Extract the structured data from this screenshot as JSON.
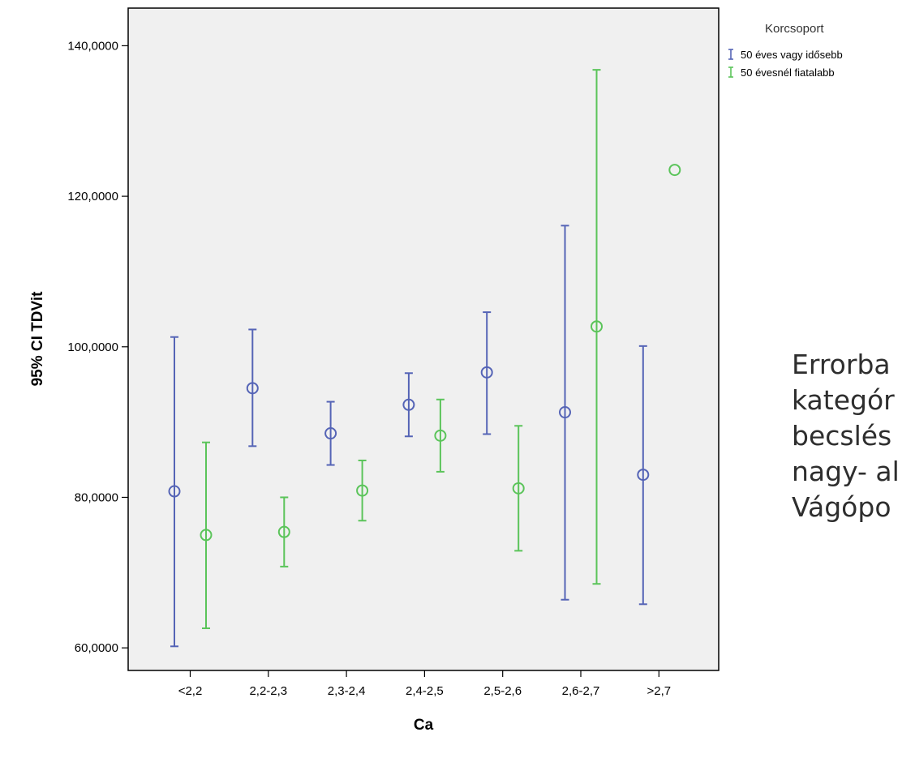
{
  "chart_data": {
    "type": "errorbar",
    "xlabel": "Ca",
    "ylabel": "95% CI TDVit",
    "ylim": [
      57,
      145
    ],
    "yticks": [
      60,
      80,
      100,
      120,
      140
    ],
    "yticklabels": [
      "60,0000",
      "80,0000",
      "100,0000",
      "120,0000",
      "140,0000"
    ],
    "categories": [
      "<2,2",
      "2,2-2,3",
      "2,3-2,4",
      "2,4-2,5",
      "2,5-2,6",
      "2,6-2,7",
      ">2,7"
    ],
    "legend": {
      "title": "Korcsoport",
      "position": "top-right, outside plot"
    },
    "grid": false,
    "plot_background": "#f0f0f0",
    "series": [
      {
        "name": "50 éves vagy idősebb",
        "color": "#5564b6",
        "mean": [
          80.8,
          94.5,
          88.5,
          92.3,
          96.6,
          91.3,
          83.0
        ],
        "lower": [
          60.2,
          86.8,
          84.3,
          88.1,
          88.4,
          66.4,
          65.8
        ],
        "upper": [
          101.3,
          102.3,
          92.7,
          96.5,
          104.6,
          116.1,
          100.1
        ]
      },
      {
        "name": "50 évesnél fiatalabb",
        "color": "#5bc45a",
        "mean": [
          75.0,
          75.4,
          80.9,
          88.2,
          81.2,
          102.7,
          123.5
        ],
        "lower": [
          62.6,
          70.8,
          76.9,
          83.4,
          72.9,
          68.5,
          null
        ],
        "upper": [
          87.3,
          80.0,
          84.9,
          93.0,
          89.5,
          136.8,
          null
        ]
      }
    ]
  },
  "side_text": {
    "lines": [
      "Errorba",
      "kategór",
      "becslés",
      "nagy- al",
      "Vágópo"
    ]
  }
}
